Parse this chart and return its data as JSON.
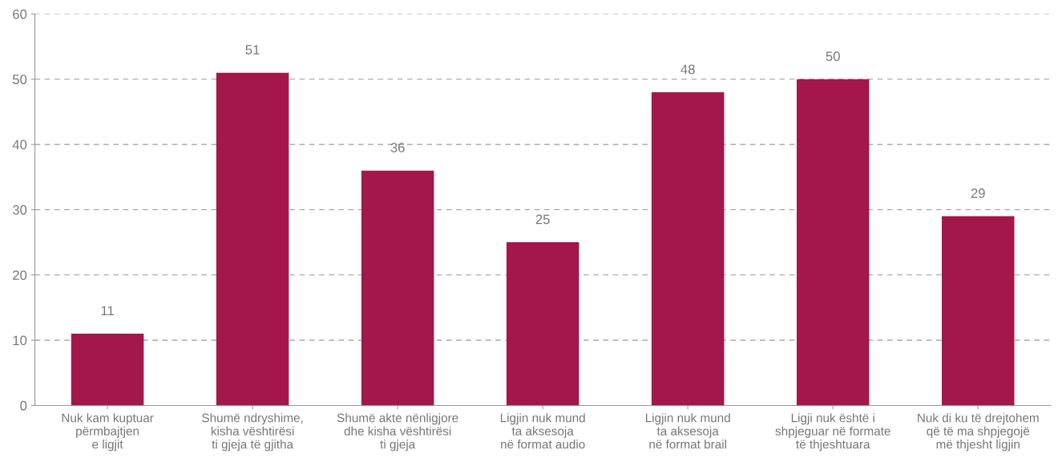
{
  "chart_data": {
    "type": "bar",
    "categories": [
      "Nuk kam kuptuar\npërmbajtjen\ne ligjit",
      "Shumë ndryshime,\nkisha vështirësi\nti gjeja të gjitha",
      "Shumë akte nënligjore\ndhe kisha vështirësi\nti gjeja",
      "Ligjin nuk mund\nta aksesoja\nnë format audio",
      "Ligjin nuk mund\nta aksesoja\nnë format brail",
      "Ligji nuk është i\nshpjeguar në formate\ntë thjeshtuara",
      "Nuk di ku të drejtohem\nqë të ma shpjegojë\nmë thjesht ligjin"
    ],
    "values": [
      11,
      51,
      36,
      25,
      48,
      50,
      29
    ],
    "color": "#a3174a",
    "ylim": [
      0,
      60
    ],
    "yticks": [
      0,
      10,
      20,
      30,
      40,
      50,
      60
    ],
    "grid": "y",
    "data_labels": true
  }
}
